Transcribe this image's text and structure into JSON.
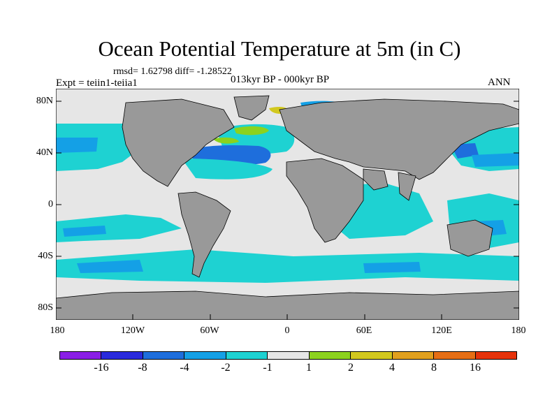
{
  "title": "Ocean Potential Temperature at 5m (in C)",
  "stats": "rmsd= 1.62798 diff= -1.28522",
  "experiment": "Expt = teiin1-teiia1",
  "period": "013kyr BP - 000kyr BP",
  "season": "ANN",
  "map": {
    "lat_ticks": [
      "80N",
      "40N",
      "0",
      "40S",
      "80S"
    ],
    "lon_ticks": [
      "180",
      "120W",
      "60W",
      "0",
      "60E",
      "120E",
      "180"
    ],
    "land_color": "#999999",
    "ocean_default_color": "#E6E6E6"
  },
  "legend": {
    "levels": [
      "-16",
      "-8",
      "-4",
      "-2",
      "-1",
      "1",
      "2",
      "4",
      "8",
      "16"
    ],
    "colors": [
      "#8A1EE6",
      "#2A2ADC",
      "#1E6EDC",
      "#14A0E6",
      "#1ED2D2",
      "#E6E6E6",
      "#8CD21E",
      "#D2C81E",
      "#E1A01E",
      "#E66E14",
      "#E6320A"
    ]
  }
}
